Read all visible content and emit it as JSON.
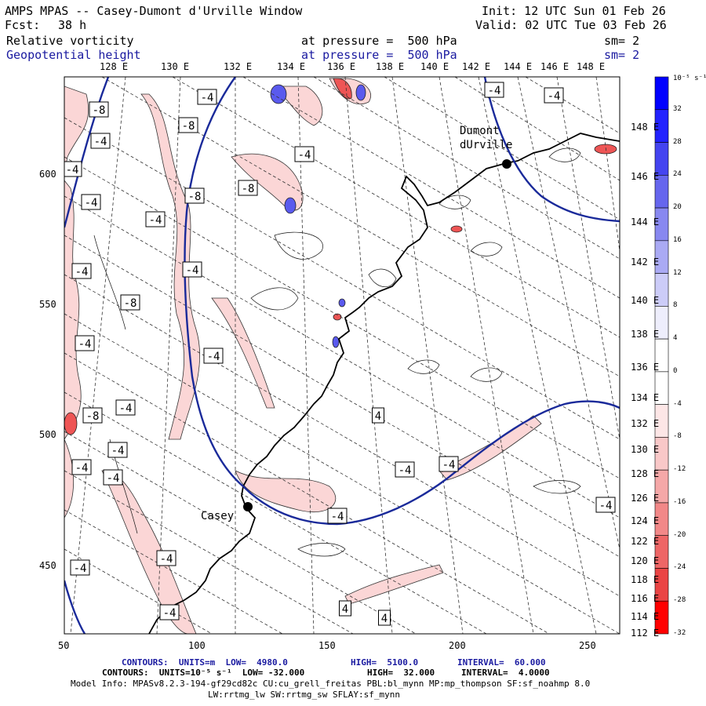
{
  "header": {
    "title": "AMPS MPAS -- Casey-Dumont d'Urville Window",
    "fcst_label": "Fcst:",
    "fcst_value": "38 h",
    "init": "Init: 12 UTC Sun 01 Feb 26",
    "valid": "Valid: 02 UTC Tue 03 Feb 26",
    "field1": {
      "name": "Relative vorticity",
      "level": "at pressure =  500 hPa",
      "sm": "sm= 2"
    },
    "field2": {
      "name": "Geopotential height",
      "level": "at pressure =  500 hPa",
      "sm": "sm= 2"
    }
  },
  "lon_top_labels": [
    "128 E",
    "130 E",
    "132 E",
    "134 E",
    "136 E",
    "138 E",
    "140 E",
    "142 E",
    "144 E",
    "146 E",
    "148 E"
  ],
  "lon_right_labels": [
    "148 E",
    "146 E",
    "144 E",
    "142 E",
    "140 E",
    "138 E",
    "136 E",
    "134 E",
    "132 E",
    "130 E",
    "128 E",
    "126 E",
    "124 E",
    "122 E",
    "120 E",
    "118 E",
    "116 E",
    "114 E",
    "112 E"
  ],
  "x_ticks": [
    "50",
    "100",
    "150",
    "200",
    "250"
  ],
  "y_ticks": [
    "600",
    "550",
    "500",
    "450"
  ],
  "places": {
    "dumont": "Dumont\ndUrville",
    "casey": "Casey"
  },
  "contour_labels": [
    "-8",
    "-4",
    "-8",
    "-4",
    "-4",
    "-8",
    "-8",
    "-4",
    "-4",
    "-4",
    "-4",
    "-4",
    "-4",
    "-4",
    "-8",
    "-4",
    "-8",
    "-4",
    "-4",
    "-4",
    "-4",
    "-4",
    "-4",
    "-4",
    "-4",
    "4",
    "4",
    "4",
    "-4",
    "-4",
    "-4"
  ],
  "colorbar": {
    "unit": "10⁻⁵ s⁻¹",
    "ticks": [
      "32",
      "28",
      "24",
      "20",
      "16",
      "12",
      "8",
      "4",
      "0",
      "-4",
      "-8",
      "-12",
      "-16",
      "-20",
      "-24",
      "-28",
      "-32"
    ],
    "colors": [
      "#0000ff",
      "#2222ff",
      "#4444f0",
      "#6666ee",
      "#8888f0",
      "#aaaaf4",
      "#ccccf8",
      "#eeeefc",
      "#ffffff",
      "#ffffff",
      "#fde6e6",
      "#f9c8c8",
      "#f5a8a8",
      "#f28888",
      "#ee6666",
      "#ea4444",
      "#ff0000"
    ]
  },
  "footer": {
    "line1": {
      "label": "CONTOURS:  UNITS=m  LOW=  4980.0",
      "high": "HIGH=  5100.0",
      "interval": "INTERVAL=  60.000"
    },
    "line2": {
      "label": "CONTOURS:  UNITS=10⁻⁵ s⁻¹  LOW= -32.000",
      "high": "HIGH=  32.000",
      "interval": "INTERVAL=  4.0000"
    },
    "line3": "Model Info: MPASv8.2.3-194-gf29cd82c CU:cu_grell_freitas PBL:bl_mynn MP:mp_thompson SF:sf_noahmp 8.0",
    "line4": "LW:rrtmg_lw SW:rrtmg_sw SFLAY:sf_mynn"
  }
}
